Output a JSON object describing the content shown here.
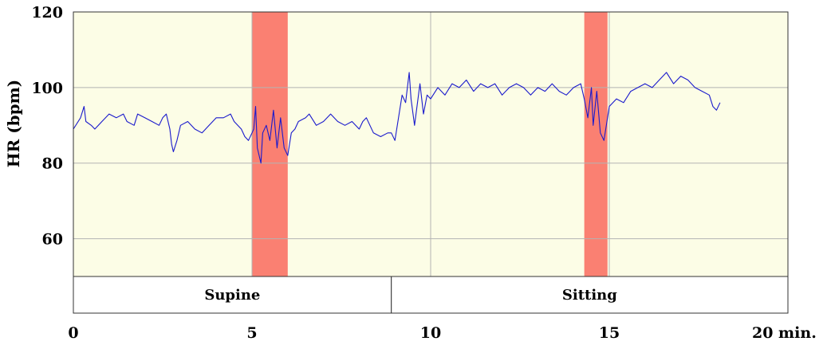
{
  "chart_data": {
    "type": "line",
    "title": "",
    "ylabel": "HR (bpm)",
    "xlabel": "",
    "xlim": [
      0,
      20
    ],
    "ylim": [
      50,
      120
    ],
    "x_ticks": [
      {
        "value": 0,
        "label": "0"
      },
      {
        "value": 5,
        "label": "5"
      },
      {
        "value": 10,
        "label": "10"
      },
      {
        "value": 15,
        "label": "15"
      },
      {
        "value": 20,
        "label": "20 min."
      }
    ],
    "y_ticks": [
      {
        "value": 60,
        "label": "60"
      },
      {
        "value": 80,
        "label": "80"
      },
      {
        "value": 100,
        "label": "100"
      },
      {
        "value": 120,
        "label": "120"
      }
    ],
    "grid": true,
    "highlight_bands": [
      {
        "start": 5.0,
        "end": 6.0
      },
      {
        "start": 14.3,
        "end": 14.95
      }
    ],
    "segments": [
      {
        "label": "Supine",
        "start": 0,
        "end": 8.9
      },
      {
        "label": "Sitting",
        "start": 8.9,
        "end": 20
      }
    ],
    "series": [
      {
        "values": [
          [
            0.0,
            89
          ],
          [
            0.2,
            92
          ],
          [
            0.3,
            95
          ],
          [
            0.35,
            91
          ],
          [
            0.5,
            90
          ],
          [
            0.6,
            89
          ],
          [
            0.8,
            91
          ],
          [
            1.0,
            93
          ],
          [
            1.2,
            92
          ],
          [
            1.4,
            93
          ],
          [
            1.5,
            91
          ],
          [
            1.7,
            90
          ],
          [
            1.8,
            93
          ],
          [
            2.0,
            92
          ],
          [
            2.2,
            91
          ],
          [
            2.4,
            90
          ],
          [
            2.5,
            92
          ],
          [
            2.6,
            93
          ],
          [
            2.7,
            89
          ],
          [
            2.75,
            85
          ],
          [
            2.8,
            83
          ],
          [
            2.9,
            86
          ],
          [
            3.0,
            90
          ],
          [
            3.2,
            91
          ],
          [
            3.4,
            89
          ],
          [
            3.6,
            88
          ],
          [
            3.8,
            90
          ],
          [
            4.0,
            92
          ],
          [
            4.2,
            92
          ],
          [
            4.4,
            93
          ],
          [
            4.5,
            91
          ],
          [
            4.6,
            90
          ],
          [
            4.7,
            89
          ],
          [
            4.8,
            87
          ],
          [
            4.9,
            86
          ],
          [
            5.0,
            88
          ],
          [
            5.05,
            89
          ],
          [
            5.1,
            95
          ],
          [
            5.15,
            84
          ],
          [
            5.25,
            80
          ],
          [
            5.3,
            88
          ],
          [
            5.4,
            90
          ],
          [
            5.5,
            86
          ],
          [
            5.6,
            94
          ],
          [
            5.7,
            84
          ],
          [
            5.8,
            92
          ],
          [
            5.9,
            84
          ],
          [
            6.0,
            82
          ],
          [
            6.1,
            88
          ],
          [
            6.2,
            89
          ],
          [
            6.3,
            91
          ],
          [
            6.5,
            92
          ],
          [
            6.6,
            93
          ],
          [
            6.8,
            90
          ],
          [
            7.0,
            91
          ],
          [
            7.2,
            93
          ],
          [
            7.4,
            91
          ],
          [
            7.6,
            90
          ],
          [
            7.8,
            91
          ],
          [
            8.0,
            89
          ],
          [
            8.1,
            91
          ],
          [
            8.2,
            92
          ],
          [
            8.4,
            88
          ],
          [
            8.6,
            87
          ],
          [
            8.8,
            88
          ],
          [
            8.9,
            88
          ],
          [
            9.0,
            86
          ],
          [
            9.1,
            92
          ],
          [
            9.2,
            98
          ],
          [
            9.3,
            96
          ],
          [
            9.4,
            104
          ],
          [
            9.45,
            97
          ],
          [
            9.55,
            90
          ],
          [
            9.7,
            101
          ],
          [
            9.8,
            93
          ],
          [
            9.9,
            98
          ],
          [
            10.0,
            97
          ],
          [
            10.2,
            100
          ],
          [
            10.4,
            98
          ],
          [
            10.6,
            101
          ],
          [
            10.8,
            100
          ],
          [
            11.0,
            102
          ],
          [
            11.2,
            99
          ],
          [
            11.4,
            101
          ],
          [
            11.6,
            100
          ],
          [
            11.8,
            101
          ],
          [
            12.0,
            98
          ],
          [
            12.2,
            100
          ],
          [
            12.4,
            101
          ],
          [
            12.6,
            100
          ],
          [
            12.8,
            98
          ],
          [
            13.0,
            100
          ],
          [
            13.2,
            99
          ],
          [
            13.4,
            101
          ],
          [
            13.6,
            99
          ],
          [
            13.8,
            98
          ],
          [
            14.0,
            100
          ],
          [
            14.2,
            101
          ],
          [
            14.3,
            97
          ],
          [
            14.4,
            92
          ],
          [
            14.5,
            100
          ],
          [
            14.55,
            90
          ],
          [
            14.65,
            99
          ],
          [
            14.75,
            88
          ],
          [
            14.85,
            86
          ],
          [
            14.95,
            92
          ],
          [
            15.0,
            95
          ],
          [
            15.2,
            97
          ],
          [
            15.4,
            96
          ],
          [
            15.6,
            99
          ],
          [
            15.8,
            100
          ],
          [
            16.0,
            101
          ],
          [
            16.2,
            100
          ],
          [
            16.4,
            102
          ],
          [
            16.6,
            104
          ],
          [
            16.8,
            101
          ],
          [
            17.0,
            103
          ],
          [
            17.2,
            102
          ],
          [
            17.4,
            100
          ],
          [
            17.6,
            99
          ],
          [
            17.8,
            98
          ],
          [
            17.9,
            95
          ],
          [
            18.0,
            94
          ],
          [
            18.1,
            96
          ]
        ]
      }
    ]
  },
  "colors": {
    "plot_bg": "#fcfde6",
    "band": "#fa8072",
    "grid": "#b3b3b3",
    "line": "#1a1acc",
    "axis": "#333333"
  }
}
